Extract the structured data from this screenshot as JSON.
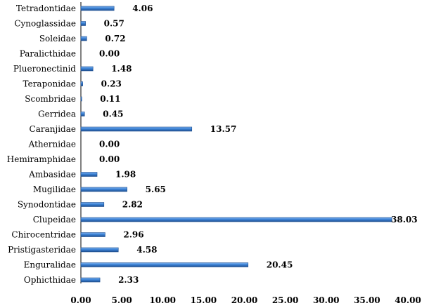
{
  "chart_data": {
    "type": "bar",
    "orientation": "horizontal",
    "categories": [
      "Tetradontidae",
      "Cynoglassidae",
      "Soleidae",
      "Paralicthidae",
      "Plueronectinid",
      "Teraponidae",
      "Scombridae",
      "Gerridea",
      "Caranjidae",
      "Athernidae",
      "Hemiramphidae",
      "Ambasidae",
      "Mugilidae",
      "Synodontidae",
      "Clupeidae",
      "Chirocentridae",
      "Pristigasteridae",
      "Enguralidae",
      "Ophicthidae"
    ],
    "values": [
      4.06,
      0.57,
      0.72,
      0.0,
      1.48,
      0.23,
      0.11,
      0.45,
      13.57,
      0.0,
      0.0,
      1.98,
      5.65,
      2.82,
      38.03,
      2.96,
      4.58,
      20.45,
      2.33
    ],
    "value_labels": [
      "4.06",
      "0.57",
      "0.72",
      "0.00",
      "1.48",
      "0.23",
      "0.11",
      "0.45",
      "13.57",
      "0.00",
      "0.00",
      "1.98",
      "5.65",
      "2.82",
      "38.03",
      "2.96",
      "4.58",
      "20.45",
      "2.33"
    ],
    "xlim": [
      0,
      40
    ],
    "x_ticks": [
      "0.00",
      "5.00",
      "10.00",
      "15.00",
      "20.00",
      "25.00",
      "30.00",
      "35.00",
      "40.00"
    ],
    "title": "",
    "xlabel": "",
    "ylabel": "",
    "grid": false,
    "legend": "none",
    "bar_color": "#3b82d6",
    "bar_edge_color": "#1f4f8f"
  }
}
